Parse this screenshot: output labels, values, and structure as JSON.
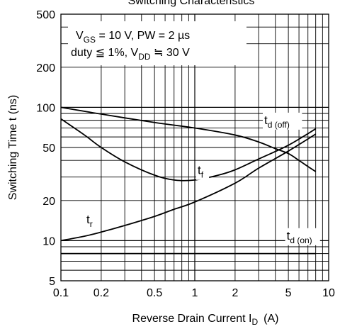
{
  "chart_data": {
    "type": "line",
    "title": "Switching Characteristics",
    "xlabel": "Reverse Drain Current",
    "xlabel_symbol": "I",
    "xlabel_subscript": "D",
    "xlabel_unit": "(A)",
    "ylabel": "Switching Time  t  (ns)",
    "x_scale": "log",
    "y_scale": "log",
    "xlim": [
      0.1,
      10
    ],
    "ylim": [
      5,
      500
    ],
    "grid": true,
    "x_tick_labels": [
      {
        "value": 0.1,
        "label": "0.1"
      },
      {
        "value": 0.2,
        "label": "0.2"
      },
      {
        "value": 0.5,
        "label": "0.5"
      },
      {
        "value": 1,
        "label": "1"
      },
      {
        "value": 2,
        "label": "2"
      },
      {
        "value": 5,
        "label": "5"
      },
      {
        "value": 10,
        "label": "10"
      }
    ],
    "y_tick_labels": [
      {
        "value": 5,
        "label": "5"
      },
      {
        "value": 10,
        "label": "10"
      },
      {
        "value": 20,
        "label": "20"
      },
      {
        "value": 50,
        "label": "50"
      },
      {
        "value": 100,
        "label": "100"
      },
      {
        "value": 200,
        "label": "200"
      },
      {
        "value": 500,
        "label": "500"
      }
    ],
    "conditions": [
      {
        "parts": [
          {
            "t": "V"
          },
          {
            "t": "GS",
            "sub": true
          },
          {
            "t": " = 10 V, PW = 2 µs"
          }
        ]
      },
      {
        "parts": [
          {
            "t": "duty ≦ 1%, V"
          },
          {
            "t": "DD",
            "sub": true
          },
          {
            "t": " ≒ 30 V"
          }
        ]
      }
    ],
    "series": [
      {
        "label_main": "t",
        "label_sub": "d (off)",
        "label_at": {
          "x": 3.3,
          "y": 75
        },
        "x": [
          0.1,
          0.2,
          0.5,
          1,
          2,
          3,
          4,
          5,
          6,
          7,
          8
        ],
        "y": [
          100,
          89,
          77,
          70,
          62,
          55,
          49,
          45,
          40,
          36,
          33
        ]
      },
      {
        "label_main": "t",
        "label_sub": "f",
        "label_at": {
          "x": 1.05,
          "y": 31.5
        },
        "x": [
          0.1,
          0.15,
          0.2,
          0.3,
          0.5,
          0.7,
          1,
          1.5,
          2,
          3,
          5,
          8
        ],
        "y": [
          82,
          62,
          50,
          39,
          31,
          28.5,
          28.5,
          31,
          34,
          41,
          52,
          69
        ]
      },
      {
        "label_main": "t",
        "label_sub": "r",
        "label_at": {
          "x": 0.155,
          "y": 13.5
        },
        "x": [
          0.1,
          0.15,
          0.2,
          0.3,
          0.5,
          0.7,
          1,
          2,
          3,
          5,
          8
        ],
        "y": [
          10,
          10.8,
          11.6,
          13,
          15.2,
          17.2,
          19.5,
          27,
          35,
          47,
          63
        ]
      },
      {
        "label_main": "t",
        "label_sub": "d (on)",
        "label_at": {
          "x": 4.85,
          "y": 10.2
        },
        "x": [
          0.1,
          8
        ],
        "y": [
          8,
          8
        ]
      }
    ]
  }
}
